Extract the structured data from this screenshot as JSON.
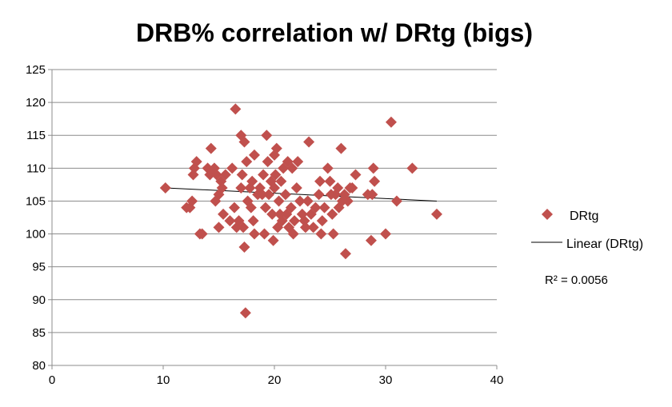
{
  "chart_data": {
    "type": "scatter",
    "title": "DRB% correlation w/ DRtg (bigs)",
    "xlim": [
      0,
      40
    ],
    "ylim": [
      80,
      125
    ],
    "x_ticks": [
      0,
      10,
      20,
      30,
      40
    ],
    "y_ticks": [
      80,
      85,
      90,
      95,
      100,
      105,
      110,
      115,
      120,
      125
    ],
    "grid": "horizontal",
    "legend_position": "right",
    "series": [
      {
        "name": "DRtg",
        "marker": "diamond",
        "color": "#C0504D",
        "points": [
          [
            10.2,
            107
          ],
          [
            12.1,
            104
          ],
          [
            12.4,
            104
          ],
          [
            12.6,
            105
          ],
          [
            12.8,
            110
          ],
          [
            13.0,
            111
          ],
          [
            12.7,
            109
          ],
          [
            13.3,
            100
          ],
          [
            13.5,
            100
          ],
          [
            14.0,
            110
          ],
          [
            14.3,
            113
          ],
          [
            14.2,
            109
          ],
          [
            14.6,
            110
          ],
          [
            14.8,
            109
          ],
          [
            14.7,
            105
          ],
          [
            15.0,
            106
          ],
          [
            15.2,
            108
          ],
          [
            15.0,
            101
          ],
          [
            15.3,
            107
          ],
          [
            15.4,
            103
          ],
          [
            15.6,
            109
          ],
          [
            16.0,
            102
          ],
          [
            16.2,
            110
          ],
          [
            16.4,
            104
          ],
          [
            16.5,
            119
          ],
          [
            16.6,
            101
          ],
          [
            16.8,
            102
          ],
          [
            17.0,
            115
          ],
          [
            17.1,
            109
          ],
          [
            17.0,
            107
          ],
          [
            17.2,
            101
          ],
          [
            17.3,
            114
          ],
          [
            17.3,
            98
          ],
          [
            17.5,
            111
          ],
          [
            17.4,
            88
          ],
          [
            17.6,
            105
          ],
          [
            17.8,
            107
          ],
          [
            17.9,
            104
          ],
          [
            18.0,
            108
          ],
          [
            18.1,
            102
          ],
          [
            18.2,
            100
          ],
          [
            18.2,
            112
          ],
          [
            18.5,
            106
          ],
          [
            18.7,
            107
          ],
          [
            18.9,
            106
          ],
          [
            19.0,
            109
          ],
          [
            19.1,
            100
          ],
          [
            19.2,
            104
          ],
          [
            19.3,
            115
          ],
          [
            19.4,
            111
          ],
          [
            19.5,
            106
          ],
          [
            19.7,
            108
          ],
          [
            19.8,
            103
          ],
          [
            19.9,
            99
          ],
          [
            20.0,
            112
          ],
          [
            20.0,
            107
          ],
          [
            20.1,
            109
          ],
          [
            20.2,
            113
          ],
          [
            20.3,
            101
          ],
          [
            20.4,
            105
          ],
          [
            20.5,
            103
          ],
          [
            20.6,
            108
          ],
          [
            20.7,
            102
          ],
          [
            20.8,
            110
          ],
          [
            21.0,
            106
          ],
          [
            21.1,
            103
          ],
          [
            21.2,
            111
          ],
          [
            21.3,
            101
          ],
          [
            21.5,
            104
          ],
          [
            21.6,
            110
          ],
          [
            21.7,
            100
          ],
          [
            21.8,
            102
          ],
          [
            22.0,
            107
          ],
          [
            22.1,
            111
          ],
          [
            22.3,
            105
          ],
          [
            22.5,
            103
          ],
          [
            22.7,
            102
          ],
          [
            22.8,
            101
          ],
          [
            23.0,
            105
          ],
          [
            23.1,
            114
          ],
          [
            23.3,
            103
          ],
          [
            23.5,
            101
          ],
          [
            23.7,
            104
          ],
          [
            24.0,
            106
          ],
          [
            24.1,
            108
          ],
          [
            24.2,
            100
          ],
          [
            24.3,
            102
          ],
          [
            24.5,
            104
          ],
          [
            24.8,
            110
          ],
          [
            25.0,
            108
          ],
          [
            25.1,
            106
          ],
          [
            25.2,
            103
          ],
          [
            25.3,
            100
          ],
          [
            25.5,
            106
          ],
          [
            25.7,
            107
          ],
          [
            25.8,
            104
          ],
          [
            26.0,
            113
          ],
          [
            26.1,
            105
          ],
          [
            26.3,
            106
          ],
          [
            26.4,
            97
          ],
          [
            26.6,
            105
          ],
          [
            26.8,
            107
          ],
          [
            27.0,
            107
          ],
          [
            27.3,
            109
          ],
          [
            28.4,
            106
          ],
          [
            28.7,
            99
          ],
          [
            28.8,
            106
          ],
          [
            28.9,
            110
          ],
          [
            29.0,
            108
          ],
          [
            30.0,
            100
          ],
          [
            30.5,
            117
          ],
          [
            31.0,
            105
          ],
          [
            32.4,
            110
          ],
          [
            34.6,
            103
          ]
        ]
      }
    ],
    "trendline": {
      "name": "Linear (DRtg)",
      "type": "linear",
      "x_range": [
        10.2,
        34.6
      ],
      "y_range": [
        107,
        105
      ],
      "color": "#000000",
      "r_squared_label": "R² = 0.0056"
    }
  }
}
